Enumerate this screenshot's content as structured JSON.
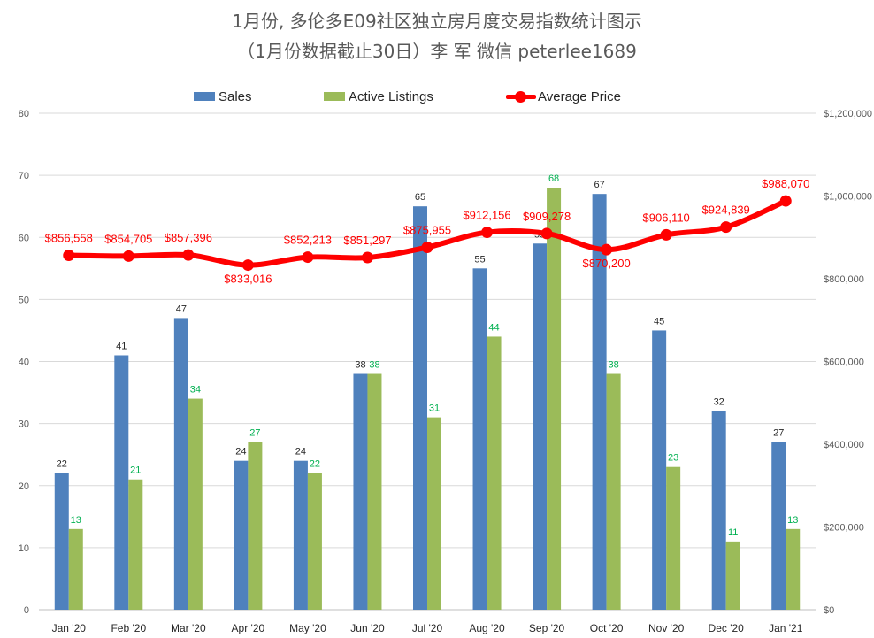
{
  "title": "1月份, 多伦多E09社区独立房月度交易指数统计图示",
  "subtitle": "（1月份数据截止30日）李 军  微信   peterlee1689",
  "chart_data": {
    "type": "bar",
    "categories": [
      "Jan '20",
      "Feb '20",
      "Mar '20",
      "Apr '20",
      "May '20",
      "Jun '20",
      "Jul '20",
      "Aug '20",
      "Sep '20",
      "Oct '20",
      "Nov '20",
      "Dec '20",
      "Jan '21"
    ],
    "series": [
      {
        "name": "Sales",
        "type": "bar",
        "axis": "left",
        "color": "#4f81bd",
        "values": [
          22,
          41,
          47,
          24,
          24,
          38,
          65,
          55,
          59,
          67,
          45,
          32,
          27
        ],
        "labels": [
          "22",
          "41",
          "47",
          "24",
          "24",
          "38",
          "65",
          "55",
          "59",
          "67",
          "45",
          "32",
          "27"
        ]
      },
      {
        "name": "Active Listings",
        "type": "bar",
        "axis": "left",
        "color": "#9bbb59",
        "label_color": "#00b050",
        "values": [
          13,
          21,
          34,
          27,
          22,
          38,
          31,
          44,
          68,
          38,
          23,
          11,
          13
        ],
        "labels": [
          "13",
          "21",
          "34",
          "27",
          "22",
          "38",
          "31",
          "44",
          "68",
          "38",
          "23",
          "11",
          "13"
        ]
      },
      {
        "name": "Average Price",
        "type": "line",
        "axis": "right",
        "color": "#ff0000",
        "values": [
          856558,
          854705,
          857396,
          833016,
          852213,
          851297,
          875955,
          912156,
          909278,
          870200,
          906110,
          924839,
          988070
        ],
        "labels": [
          "$856,558",
          "$854,705",
          "$857,396",
          "$833,016",
          "$852,213",
          "$851,297",
          "$875,955",
          "$912,156",
          "$909,278",
          "$870,200",
          "$906,110",
          "$924,839",
          "$988,070"
        ]
      }
    ],
    "left_axis": {
      "min": 0,
      "max": 80,
      "ticks": [
        "0",
        "10",
        "20",
        "30",
        "40",
        "50",
        "60",
        "70",
        "80"
      ]
    },
    "right_axis": {
      "min": 0,
      "max": 1200000,
      "ticks": [
        "$0",
        "$200,000",
        "$400,000",
        "$600,000",
        "$800,000",
        "$1,000,000",
        "$1,200,000"
      ]
    },
    "grid": true,
    "legend_position": "top"
  }
}
